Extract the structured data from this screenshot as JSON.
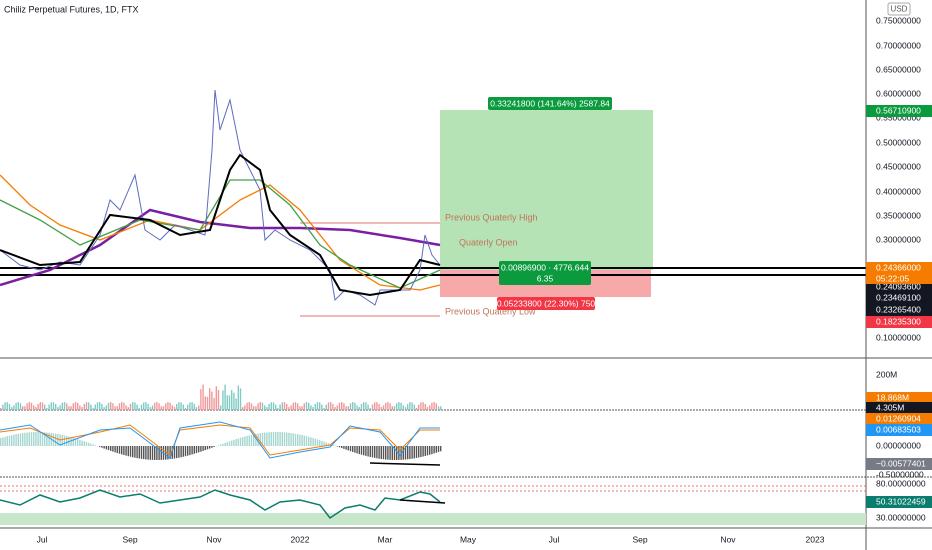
{
  "header": {
    "title": "Chiliz Perpetual Futures, 1D, FTX",
    "currency": "USD"
  },
  "price_axis": {
    "labels": [
      "0.75000000",
      "0.70000000",
      "0.65000000",
      "0.60000000",
      "0.55000000",
      "0.50000000",
      "0.45000000",
      "0.40000000",
      "0.35000000",
      "0.30000000",
      "0.10000000"
    ]
  },
  "price_tags": [
    "0.56710900",
    "0.24366000",
    "0.24093600",
    "0.23469100",
    "0.23265400",
    "0.18235300"
  ],
  "countdown": "05:22:05",
  "position": {
    "target": "0.33241800 (141.64%) 2587.84",
    "entry": "0.00896900 · 4776.644",
    "entry_ratio": "6.35",
    "stop": "0.05233800 (22.30%) 750"
  },
  "annotations": [
    "Previous Quaterly High",
    "Quaterly Open",
    "Previous Quaterly Low"
  ],
  "volume_pane": {
    "axis_label": "200M",
    "tags": [
      "18.868M",
      "4.305M"
    ]
  },
  "macd_pane": {
    "axis_labels": [
      "0.00000000",
      "-0.50000000"
    ],
    "tags": [
      "0.01260904",
      "0.00683503",
      "−0.00577401"
    ]
  },
  "rsi_pane": {
    "axis_labels": [
      "80.00000000",
      "30.00000000"
    ],
    "tag": "50.31022459"
  },
  "time_axis": [
    "Jul",
    "Sep",
    "Nov",
    "2022",
    "Mar",
    "May",
    "Jul",
    "Sep",
    "Nov",
    "2023"
  ]
}
